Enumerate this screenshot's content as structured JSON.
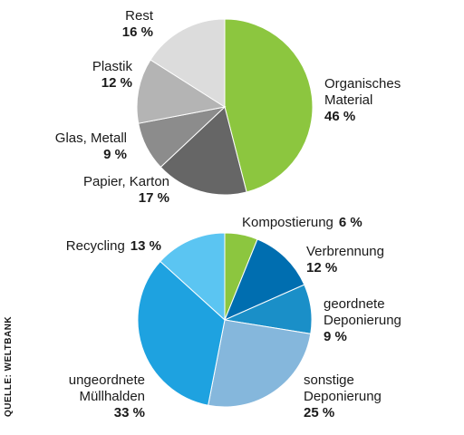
{
  "source": "QUELLE: WELTBANK",
  "chart_data": [
    {
      "type": "pie",
      "slices": [
        {
          "label": [
            "Organisches",
            "Material"
          ],
          "value": 46,
          "value_text": "46 %",
          "color": "#8cc63f"
        },
        {
          "label": [
            "Papier, Karton"
          ],
          "value": 17,
          "value_text": "17 %",
          "color": "#666666"
        },
        {
          "label": [
            "Glas, Metall"
          ],
          "value": 9,
          "value_text": "9 %",
          "color": "#8c8c8c"
        },
        {
          "label": [
            "Plastik"
          ],
          "value": 12,
          "value_text": "12 %",
          "color": "#b4b4b4"
        },
        {
          "label": [
            "Rest"
          ],
          "value": 16,
          "value_text": "16 %",
          "color": "#dcdcdc"
        }
      ]
    },
    {
      "type": "pie",
      "slices": [
        {
          "label": [
            "Kompostierung"
          ],
          "value": 6,
          "value_text": "6 %",
          "color": "#8cc63f"
        },
        {
          "label": [
            "Verbrennung"
          ],
          "value": 12,
          "value_text": "12 %",
          "color": "#006eb0"
        },
        {
          "label": [
            "geordnete",
            "Deponierung"
          ],
          "value": 9,
          "value_text": "9 %",
          "color": "#1a8fc8"
        },
        {
          "label": [
            "sonstige",
            "Deponierung"
          ],
          "value": 25,
          "value_text": "25 %",
          "color": "#85b7dc"
        },
        {
          "label": [
            "ungeordnete",
            "Müllhalden"
          ],
          "value": 33,
          "value_text": "33 %",
          "color": "#1ea2e0"
        },
        {
          "label": [
            "Recycling"
          ],
          "value": 13,
          "value_text": "13 %",
          "color": "#5bc5f2"
        }
      ]
    }
  ]
}
